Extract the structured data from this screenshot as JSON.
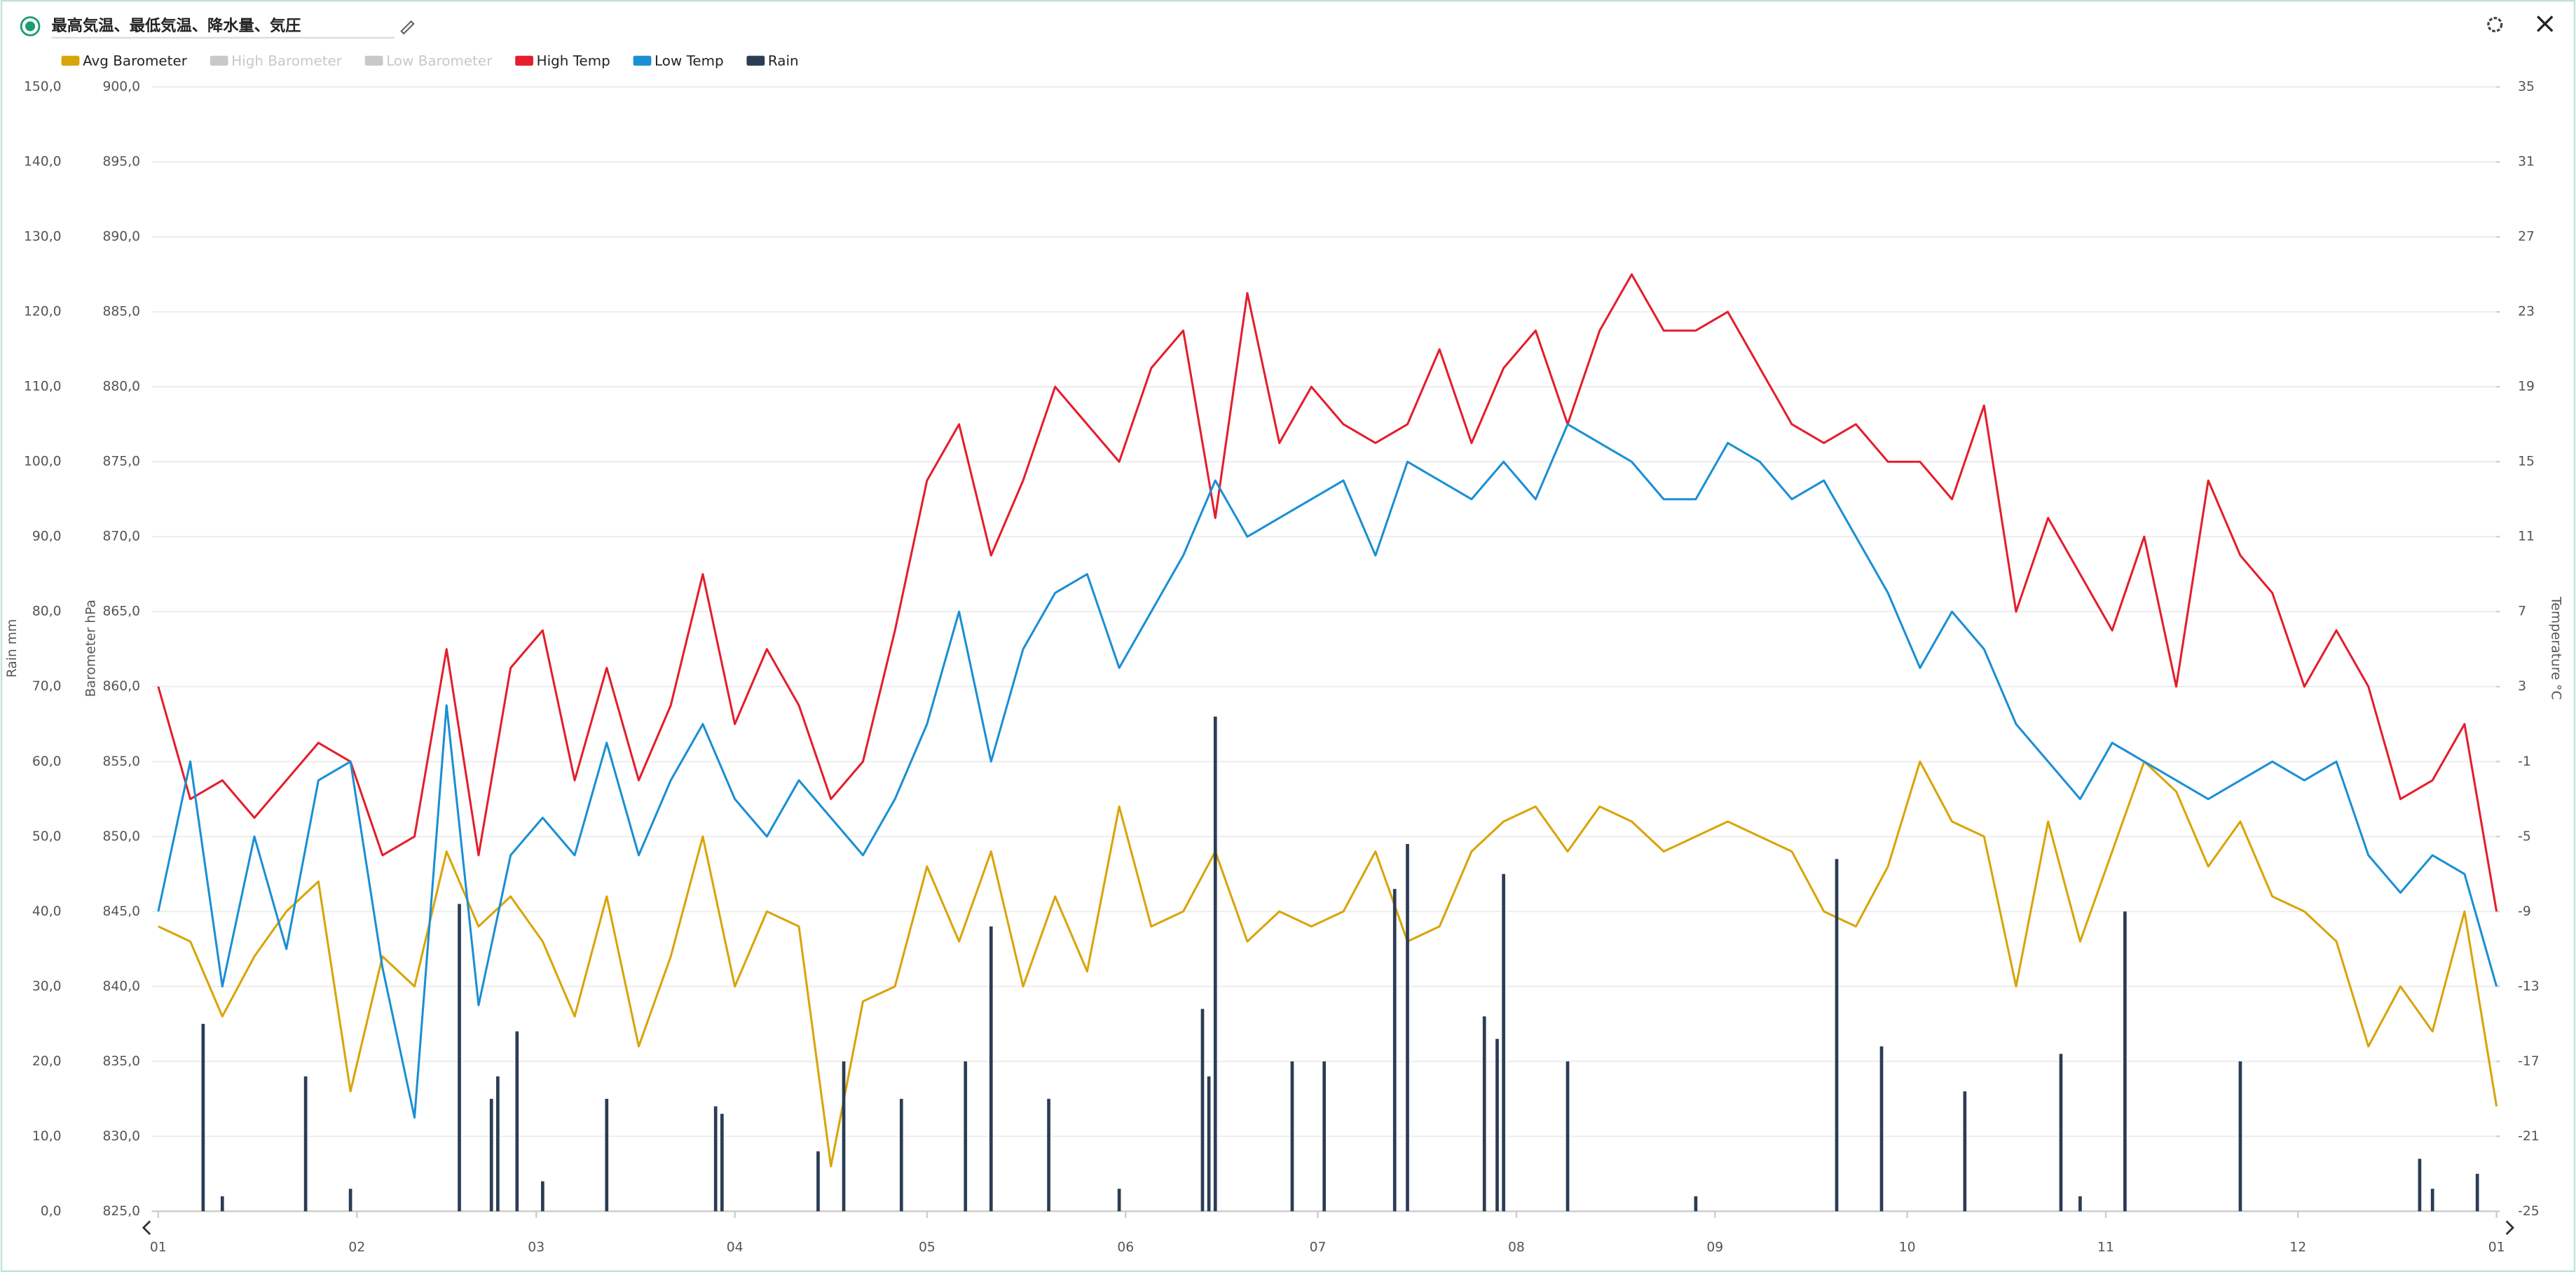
{
  "chart_data": {
    "type": "combo",
    "title": "最高気温、最低気温、降水量、気圧",
    "y_label": "Rain mm",
    "y2_label": "Barometer hPa",
    "y3_label": "Temperature °C",
    "xlim": [
      0,
      365
    ],
    "xticks": [
      {
        "value": 0,
        "label": "01"
      },
      {
        "value": 31,
        "label": "02"
      },
      {
        "value": 59,
        "label": "03"
      },
      {
        "value": 90,
        "label": "04"
      },
      {
        "value": 120,
        "label": "05"
      },
      {
        "value": 151,
        "label": "06"
      },
      {
        "value": 181,
        "label": "07"
      },
      {
        "value": 212,
        "label": "08"
      },
      {
        "value": 243,
        "label": "09"
      },
      {
        "value": 273,
        "label": "10"
      },
      {
        "value": 304,
        "label": "11"
      },
      {
        "value": 334,
        "label": "12"
      },
      {
        "value": 365,
        "label": "01"
      }
    ],
    "ylim": [
      0,
      150
    ],
    "yticks": [
      {
        "value": 0,
        "label": "0,0"
      },
      {
        "value": 10,
        "label": "10,0"
      },
      {
        "value": 20,
        "label": "20,0"
      },
      {
        "value": 30,
        "label": "30,0"
      },
      {
        "value": 40,
        "label": "40,0"
      },
      {
        "value": 50,
        "label": "50,0"
      },
      {
        "value": 60,
        "label": "60,0"
      },
      {
        "value": 70,
        "label": "70,0"
      },
      {
        "value": 80,
        "label": "80,0"
      },
      {
        "value": 90,
        "label": "90,0"
      },
      {
        "value": 100,
        "label": "100,0"
      },
      {
        "value": 110,
        "label": "110,0"
      },
      {
        "value": 120,
        "label": "120,0"
      },
      {
        "value": 130,
        "label": "130,0"
      },
      {
        "value": 140,
        "label": "140,0"
      },
      {
        "value": 150,
        "label": "150,0"
      }
    ],
    "y2lim": [
      825,
      900
    ],
    "y2ticks": [
      {
        "value": 825,
        "label": "825,0"
      },
      {
        "value": 830,
        "label": "830,0"
      },
      {
        "value": 835,
        "label": "835,0"
      },
      {
        "value": 840,
        "label": "840,0"
      },
      {
        "value": 845,
        "label": "845,0"
      },
      {
        "value": 850,
        "label": "850,0"
      },
      {
        "value": 855,
        "label": "855,0"
      },
      {
        "value": 860,
        "label": "860,0"
      },
      {
        "value": 865,
        "label": "865,0"
      },
      {
        "value": 870,
        "label": "870,0"
      },
      {
        "value": 875,
        "label": "875,0"
      },
      {
        "value": 880,
        "label": "880,0"
      },
      {
        "value": 885,
        "label": "885,0"
      },
      {
        "value": 890,
        "label": "890,0"
      },
      {
        "value": 895,
        "label": "895,0"
      },
      {
        "value": 900,
        "label": "900,0"
      }
    ],
    "y3lim": [
      -25,
      35
    ],
    "y3ticks": [
      -25,
      -21,
      -17,
      -13,
      -9,
      -5,
      -1,
      3,
      7,
      11,
      15,
      19,
      23,
      27,
      31,
      35
    ],
    "grid": true,
    "legend": "top-left",
    "series": [
      {
        "name": "Avg Barometer",
        "color": "#d9a406",
        "kind": "line",
        "axis": "y2",
        "x": [
          0,
          5,
          10,
          15,
          20,
          25,
          30,
          35,
          40,
          45,
          50,
          55,
          60,
          65,
          70,
          75,
          80,
          85,
          90,
          95,
          100,
          105,
          110,
          115,
          120,
          125,
          130,
          135,
          140,
          145,
          150,
          155,
          160,
          165,
          170,
          175,
          180,
          185,
          190,
          195,
          200,
          205,
          210,
          215,
          220,
          225,
          230,
          235,
          240,
          245,
          250,
          255,
          260,
          265,
          270,
          275,
          280,
          285,
          290,
          295,
          300,
          305,
          310,
          315,
          320,
          325,
          330,
          335,
          340,
          345,
          350,
          355,
          360,
          365
        ],
        "values": [
          844,
          843,
          838,
          842,
          845,
          847,
          833,
          842,
          840,
          849,
          844,
          846,
          843,
          838,
          846,
          836,
          842,
          850,
          840,
          845,
          844,
          828,
          839,
          840,
          848,
          843,
          849,
          840,
          846,
          841,
          852,
          844,
          845,
          849,
          843,
          845,
          844,
          845,
          849,
          843,
          844,
          849,
          851,
          852,
          849,
          852,
          851,
          849,
          850,
          851,
          850,
          849,
          845,
          844,
          848,
          855,
          851,
          850,
          840,
          851,
          843,
          849,
          855,
          853,
          848,
          851,
          846,
          845,
          843,
          836,
          840,
          837,
          845,
          832
        ]
      },
      {
        "name": "High Barometer",
        "color": "#c8c8c8",
        "kind": "line",
        "axis": "y2",
        "visible": false
      },
      {
        "name": "Low Barometer",
        "color": "#c8c8c8",
        "kind": "line",
        "axis": "y2",
        "visible": false
      },
      {
        "name": "High Temp",
        "color": "#e41e2b",
        "kind": "line",
        "axis": "y3",
        "x": [
          0,
          5,
          10,
          15,
          20,
          25,
          30,
          35,
          40,
          45,
          50,
          55,
          60,
          65,
          70,
          75,
          80,
          85,
          90,
          95,
          100,
          105,
          110,
          115,
          120,
          125,
          130,
          135,
          140,
          145,
          150,
          155,
          160,
          165,
          170,
          175,
          180,
          185,
          190,
          195,
          200,
          205,
          210,
          215,
          220,
          225,
          230,
          235,
          240,
          245,
          250,
          255,
          260,
          265,
          270,
          275,
          280,
          285,
          290,
          295,
          300,
          305,
          310,
          315,
          320,
          325,
          330,
          335,
          340,
          345,
          350,
          355,
          360,
          365
        ],
        "values": [
          3,
          -3,
          -2,
          -4,
          -2,
          0,
          -1,
          -6,
          -5,
          5,
          -6,
          4,
          6,
          -2,
          4,
          -2,
          2,
          9,
          1,
          5,
          2,
          -3,
          -1,
          6,
          14,
          17,
          10,
          14,
          19,
          17,
          15,
          20,
          22,
          12,
          24,
          16,
          19,
          17,
          16,
          17,
          21,
          16,
          20,
          22,
          17,
          22,
          25,
          22,
          22,
          23,
          20,
          17,
          16,
          17,
          15,
          15,
          13,
          18,
          7,
          12,
          9,
          6,
          11,
          3,
          14,
          10,
          8,
          3,
          6,
          3,
          -3,
          -2,
          1,
          -9
        ]
      },
      {
        "name": "Low Temp",
        "color": "#1a8fd4",
        "kind": "line",
        "axis": "y3",
        "x": [
          0,
          5,
          10,
          15,
          20,
          25,
          30,
          35,
          40,
          45,
          50,
          55,
          60,
          65,
          70,
          75,
          80,
          85,
          90,
          95,
          100,
          105,
          110,
          115,
          120,
          125,
          130,
          135,
          140,
          145,
          150,
          155,
          160,
          165,
          170,
          175,
          180,
          185,
          190,
          195,
          200,
          205,
          210,
          215,
          220,
          225,
          230,
          235,
          240,
          245,
          250,
          255,
          260,
          265,
          270,
          275,
          280,
          285,
          290,
          295,
          300,
          305,
          310,
          315,
          320,
          325,
          330,
          335,
          340,
          345,
          350,
          355,
          360,
          365
        ],
        "values": [
          -9,
          -1,
          -13,
          -5,
          -11,
          -2,
          -1,
          -12,
          -20,
          2,
          -14,
          -6,
          -4,
          -6,
          0,
          -6,
          -2,
          1,
          -3,
          -5,
          -2,
          -4,
          -6,
          -3,
          1,
          7,
          -1,
          5,
          8,
          9,
          4,
          7,
          10,
          14,
          11,
          12,
          13,
          14,
          10,
          15,
          14,
          13,
          15,
          13,
          17,
          16,
          15,
          13,
          13,
          16,
          15,
          13,
          14,
          11,
          8,
          4,
          7,
          5,
          1,
          -1,
          -3,
          0,
          -1,
          -2,
          -3,
          -2,
          -1,
          -2,
          -1,
          -6,
          -8,
          -6,
          -7,
          -13
        ]
      },
      {
        "name": "Rain",
        "color": "#2b3c55",
        "kind": "bar",
        "axis": "y",
        "x": [
          7,
          10,
          23,
          30,
          47,
          52,
          53,
          56,
          60,
          70,
          87,
          88,
          103,
          107,
          116,
          126,
          130,
          139,
          150,
          163,
          164,
          165,
          177,
          182,
          193,
          195,
          207,
          209,
          210,
          220,
          240,
          262,
          269,
          282,
          297,
          300,
          307,
          325,
          353,
          355,
          362
        ],
        "values": [
          25,
          2,
          18,
          3,
          41,
          15,
          18,
          24,
          4,
          15,
          14,
          13,
          8,
          20,
          15,
          20,
          38,
          15,
          3,
          27,
          18,
          66,
          20,
          20,
          43,
          49,
          26,
          23,
          45,
          20,
          2,
          47,
          22,
          16,
          21,
          2,
          40,
          20,
          7,
          3,
          5
        ]
      }
    ]
  }
}
